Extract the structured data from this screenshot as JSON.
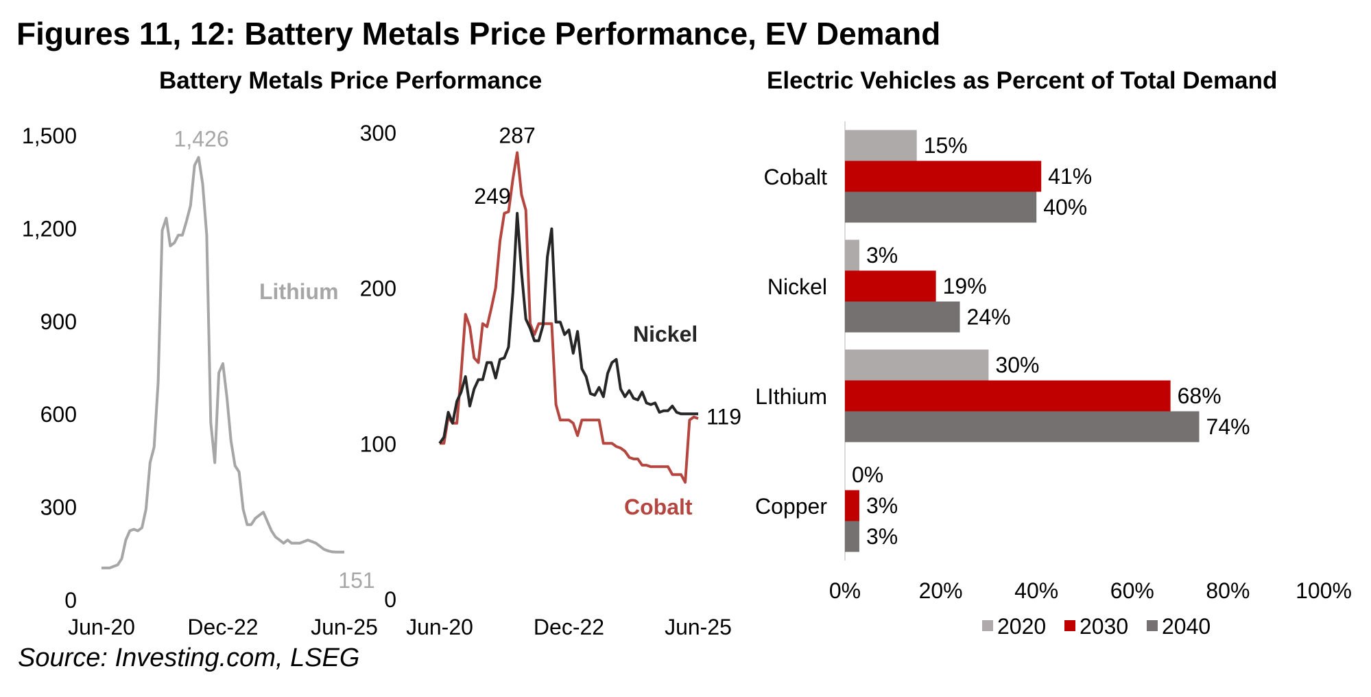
{
  "page": {
    "title": "Figures 11, 12: Battery Metals Price Performance, EV Demand",
    "source": "Source: Investing.com, LSEG"
  },
  "colors": {
    "lithium": "#a6a6a6",
    "nickel": "#262626",
    "cobalt": "#b5463f",
    "bar_2020": "#aeaaaa",
    "bar_2030": "#c00000",
    "bar_2040": "#767171",
    "axis_text": "#000000"
  },
  "chart_data": [
    {
      "type": "line",
      "title": "Battery Metals Price Performance",
      "panel": "lithium",
      "x_ticks": [
        "Jun-20",
        "Dec-22",
        "Jun-25"
      ],
      "x_range": [
        0,
        60
      ],
      "y_ticks": [
        0,
        300,
        600,
        900,
        1200,
        1500
      ],
      "y_tick_labels": [
        "0",
        "300",
        "600",
        "900",
        "1,200",
        "1,500"
      ],
      "ylim": [
        0,
        1500
      ],
      "series": [
        {
          "name": "Lithium",
          "x": [
            0,
            2,
            4,
            5,
            6,
            7,
            8,
            9,
            10,
            11,
            12,
            13,
            14,
            15,
            16,
            17,
            18,
            19,
            20,
            21,
            22,
            23,
            24,
            25,
            26,
            27,
            28,
            29,
            30,
            31,
            32,
            33,
            34,
            35,
            36,
            37,
            38,
            39,
            40,
            41,
            42,
            43,
            44,
            45,
            46,
            47,
            48,
            49,
            50,
            51,
            52,
            53,
            54,
            55,
            56,
            57,
            58,
            59,
            60
          ],
          "values": [
            100,
            100,
            110,
            130,
            190,
            220,
            225,
            220,
            230,
            290,
            440,
            490,
            700,
            1190,
            1230,
            1140,
            1150,
            1175,
            1175,
            1220,
            1270,
            1400,
            1426,
            1340,
            1175,
            570,
            440,
            730,
            760,
            650,
            510,
            430,
            410,
            290,
            240,
            240,
            260,
            270,
            280,
            250,
            220,
            200,
            190,
            180,
            190,
            180,
            180,
            180,
            185,
            190,
            185,
            180,
            170,
            160,
            155,
            152,
            151,
            151,
            151
          ],
          "end_label": "151",
          "peak_label": "1,426",
          "series_label": "Lithium"
        }
      ]
    },
    {
      "type": "line",
      "title": "",
      "panel": "nickel_cobalt",
      "x_ticks": [
        "Jun-20",
        "Dec-22",
        "Jun-25"
      ],
      "x_range": [
        0,
        60
      ],
      "y_ticks": [
        0,
        100,
        200,
        300
      ],
      "y_tick_labels": [
        "0",
        "100",
        "200",
        "300"
      ],
      "ylim": [
        0,
        300
      ],
      "series": [
        {
          "name": "Nickel",
          "x": [
            0,
            1,
            2,
            3,
            4,
            5,
            6,
            7,
            8,
            9,
            10,
            11,
            12,
            13,
            14,
            15,
            16,
            17,
            18,
            19,
            20,
            21,
            22,
            23,
            24,
            25,
            26,
            27,
            28,
            29,
            30,
            31,
            32,
            33,
            34,
            35,
            36,
            37,
            38,
            39,
            40,
            41,
            42,
            43,
            44,
            45,
            46,
            47,
            48,
            49,
            50,
            51,
            52,
            53,
            54,
            55,
            56,
            57,
            58,
            59,
            60
          ],
          "values": [
            100,
            104,
            120,
            113,
            127,
            133,
            143,
            124,
            135,
            141,
            141,
            152,
            152,
            142,
            154,
            155,
            162,
            197,
            248,
            210,
            180,
            174,
            166,
            166,
            176,
            220,
            238,
            178,
            178,
            170,
            173,
            158,
            172,
            148,
            143,
            132,
            131,
            136,
            130,
            145,
            152,
            154,
            135,
            130,
            134,
            129,
            128,
            133,
            126,
            125,
            126,
            120,
            121,
            121,
            124,
            120,
            119,
            119,
            119,
            119,
            119
          ],
          "end_label": "119",
          "peak_label": "249",
          "series_label": "Nickel"
        },
        {
          "name": "Cobalt",
          "x": [
            0,
            1,
            2,
            3,
            4,
            5,
            6,
            7,
            8,
            9,
            10,
            11,
            12,
            13,
            14,
            15,
            16,
            17,
            18,
            19,
            20,
            21,
            22,
            23,
            24,
            25,
            26,
            27,
            28,
            29,
            30,
            31,
            32,
            33,
            34,
            35,
            36,
            37,
            38,
            39,
            40,
            41,
            42,
            43,
            44,
            45,
            46,
            47,
            48,
            49,
            50,
            51,
            52,
            53,
            54,
            55,
            56,
            57,
            58,
            59,
            60
          ],
          "values": [
            100,
            100,
            117,
            113,
            113,
            145,
            183,
            175,
            155,
            152,
            177,
            175,
            187,
            200,
            230,
            248,
            249,
            270,
            287,
            260,
            250,
            177,
            170,
            177,
            177,
            177,
            177,
            125,
            115,
            115,
            115,
            113,
            105,
            115,
            115,
            115,
            115,
            115,
            100,
            100,
            100,
            98,
            97,
            95,
            91,
            90,
            90,
            86,
            86,
            85,
            85,
            85,
            85,
            85,
            80,
            80,
            80,
            75,
            115,
            117,
            116
          ],
          "end_label": "",
          "peak_label": "287",
          "series_label": "Cobalt"
        }
      ]
    },
    {
      "type": "bar",
      "orientation": "horizontal",
      "title": "Electric Vehicles as Percent of Total Demand",
      "categories": [
        "Cobalt",
        "Nickel",
        "LIthium",
        "Copper"
      ],
      "series": [
        {
          "name": "2020",
          "values": [
            15,
            3,
            30,
            0
          ],
          "labels": [
            "15%",
            "3%",
            "30%",
            "0%"
          ]
        },
        {
          "name": "2030",
          "values": [
            41,
            19,
            68,
            3
          ],
          "labels": [
            "41%",
            "19%",
            "68%",
            "3%"
          ]
        },
        {
          "name": "2040",
          "values": [
            40,
            24,
            74,
            3
          ],
          "labels": [
            "40%",
            "24%",
            "74%",
            "3%"
          ]
        }
      ],
      "xlim": [
        0,
        100
      ],
      "x_ticks": [
        0,
        20,
        40,
        60,
        80,
        100
      ],
      "x_tick_labels": [
        "0%",
        "20%",
        "40%",
        "60%",
        "80%",
        "100%"
      ],
      "legend_position": "bottom"
    }
  ]
}
